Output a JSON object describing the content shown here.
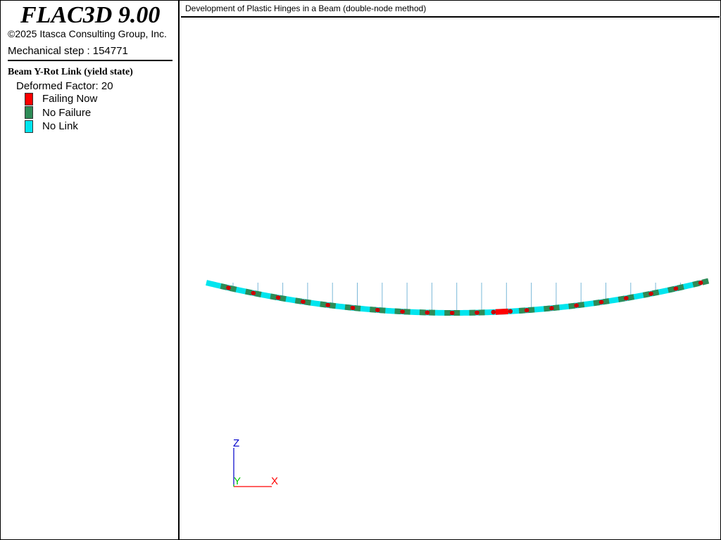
{
  "app": {
    "title": "FLAC3D 9.00",
    "copyright": "©2025 Itasca Consulting Group, Inc.",
    "step_label": "Mechanical step :",
    "step_value": "154771"
  },
  "legend": {
    "title": "Beam Y-Rot Link (yield state)",
    "deformed_factor": "Deformed Factor: 20",
    "items": [
      {
        "label": "Failing Now",
        "color": "#ff0000"
      },
      {
        "label": "No Failure",
        "color": "#2e8b57"
      },
      {
        "label": "No Link",
        "color": "#00e5ee"
      }
    ]
  },
  "view": {
    "title": "Development of Plastic Hinges in a Beam (double-node method)"
  },
  "axes": {
    "z_label": "Z",
    "y_label": "Y",
    "x_label": "X",
    "z_color": "#0000cc",
    "y_color": "#00cc00",
    "x_color": "#ff0000"
  },
  "beam": {
    "colors": {
      "no_link": "#00e5ee",
      "no_failure": "#2e8b57",
      "failing_now": "#ff0000",
      "node": "#cc0000",
      "load_line": "#7ab8d8"
    },
    "link_states": [
      "no_failure",
      "no_failure",
      "no_failure",
      "no_failure",
      "no_failure",
      "no_failure",
      "no_failure",
      "no_failure",
      "no_failure",
      "no_failure",
      "no_failure",
      "failing_now",
      "no_failure",
      "no_failure",
      "no_failure",
      "no_failure",
      "no_failure",
      "no_failure",
      "no_failure",
      "no_failure"
    ]
  }
}
